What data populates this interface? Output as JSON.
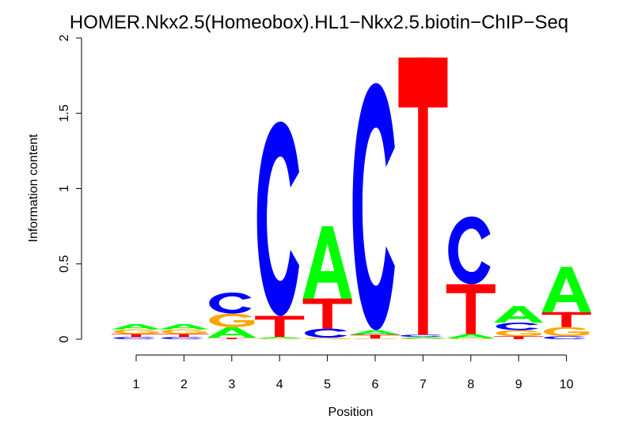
{
  "chart_data": {
    "type": "sequence-logo",
    "title": "HOMER.Nkx2.5(Homeobox).HL1−Nkx2.5.biotin−ChIP−Seq",
    "xlabel": "Position",
    "ylabel": "Information content",
    "ylim": [
      0,
      2
    ],
    "yticks": [
      0,
      0.5,
      1,
      1.5,
      2
    ],
    "ytick_labels": [
      "0",
      "0.5",
      "1",
      "1.5",
      "2"
    ],
    "positions": [
      "1",
      "2",
      "3",
      "4",
      "5",
      "6",
      "7",
      "8",
      "9",
      "10"
    ],
    "colors": {
      "A": "#00ff00",
      "C": "#0000ff",
      "G": "#ffa500",
      "T": "#ff0000"
    },
    "stacks": [
      [
        {
          "letter": "C",
          "height": 0.015
        },
        {
          "letter": "T",
          "height": 0.02
        },
        {
          "letter": "G",
          "height": 0.03
        },
        {
          "letter": "A",
          "height": 0.035
        }
      ],
      [
        {
          "letter": "C",
          "height": 0.015
        },
        {
          "letter": "T",
          "height": 0.02
        },
        {
          "letter": "G",
          "height": 0.03
        },
        {
          "letter": "A",
          "height": 0.035
        }
      ],
      [
        {
          "letter": "T",
          "height": 0.01
        },
        {
          "letter": "A",
          "height": 0.07
        },
        {
          "letter": "G",
          "height": 0.09
        },
        {
          "letter": "C",
          "height": 0.14
        }
      ],
      [
        {
          "letter": "G",
          "height": 0.005
        },
        {
          "letter": "A",
          "height": 0.01
        },
        {
          "letter": "T",
          "height": 0.14
        },
        {
          "letter": "C",
          "height": 1.29
        }
      ],
      [
        {
          "letter": "G",
          "height": 0.01
        },
        {
          "letter": "C",
          "height": 0.06
        },
        {
          "letter": "T",
          "height": 0.2
        },
        {
          "letter": "A",
          "height": 0.48
        }
      ],
      [
        {
          "letter": "G",
          "height": 0.005
        },
        {
          "letter": "T",
          "height": 0.025
        },
        {
          "letter": "A",
          "height": 0.03
        },
        {
          "letter": "C",
          "height": 1.64
        }
      ],
      [
        {
          "letter": "G",
          "height": 0.005
        },
        {
          "letter": "A",
          "height": 0.01
        },
        {
          "letter": "C",
          "height": 0.015
        },
        {
          "letter": "T",
          "height": 1.84
        }
      ],
      [
        {
          "letter": "G",
          "height": 0.005
        },
        {
          "letter": "A",
          "height": 0.03
        },
        {
          "letter": "T",
          "height": 0.33
        },
        {
          "letter": "C",
          "height": 0.45
        }
      ],
      [
        {
          "letter": "T",
          "height": 0.02
        },
        {
          "letter": "G",
          "height": 0.04
        },
        {
          "letter": "C",
          "height": 0.05
        },
        {
          "letter": "A",
          "height": 0.11
        }
      ],
      [
        {
          "letter": "C",
          "height": 0.02
        },
        {
          "letter": "G",
          "height": 0.06
        },
        {
          "letter": "T",
          "height": 0.1
        },
        {
          "letter": "A",
          "height": 0.3
        }
      ]
    ]
  }
}
